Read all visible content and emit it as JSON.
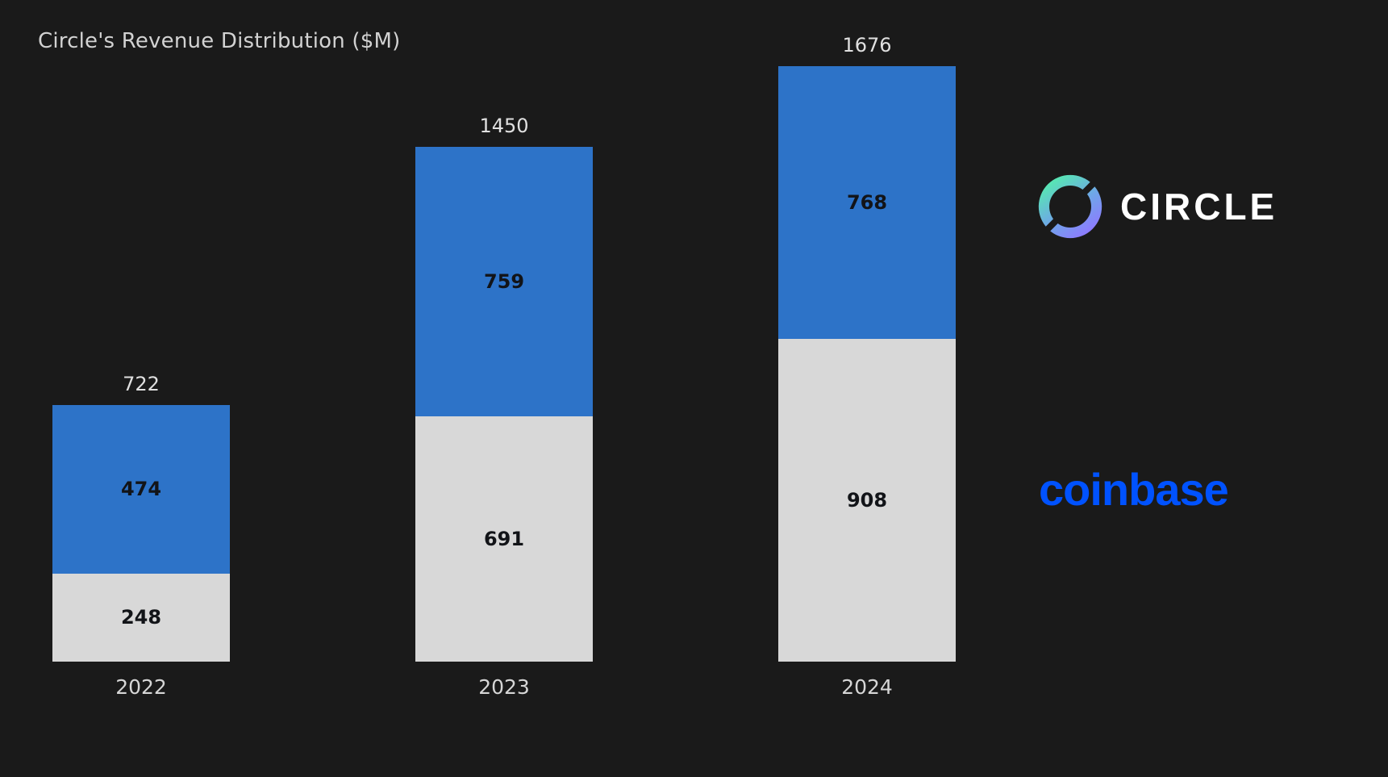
{
  "title": "Circle's Revenue Distribution ($M)",
  "chart_data": {
    "type": "bar",
    "stacked": true,
    "title": "Circle's Revenue Distribution ($M)",
    "categories": [
      "2022",
      "2023",
      "2024"
    ],
    "series": [
      {
        "name": "coinbase-share",
        "color": "#d8d8d8",
        "values": [
          248,
          691,
          908
        ]
      },
      {
        "name": "circle-share",
        "color": "#2d73c8",
        "values": [
          474,
          759,
          768
        ]
      }
    ],
    "totals": [
      722,
      1450,
      1676
    ],
    "ylim": [
      0,
      1676
    ],
    "grid": false,
    "value_labels": "inside segments, totals above bars",
    "legend_position": "brand logos at right"
  },
  "brands": {
    "circle": {
      "label": "CIRCLE",
      "text_color": "#ffffff",
      "icon": "circle-ring-logo",
      "icon_gradient_start": "#57e7b2",
      "icon_gradient_end": "#8d7bff"
    },
    "coinbase": {
      "label": "coinbase",
      "text_color": "#0052ff"
    }
  },
  "colors": {
    "background": "#1a1a1a",
    "title_text": "#d2d2d2",
    "axis_text": "#d6d6d6",
    "segment_label_text": "#121418"
  }
}
